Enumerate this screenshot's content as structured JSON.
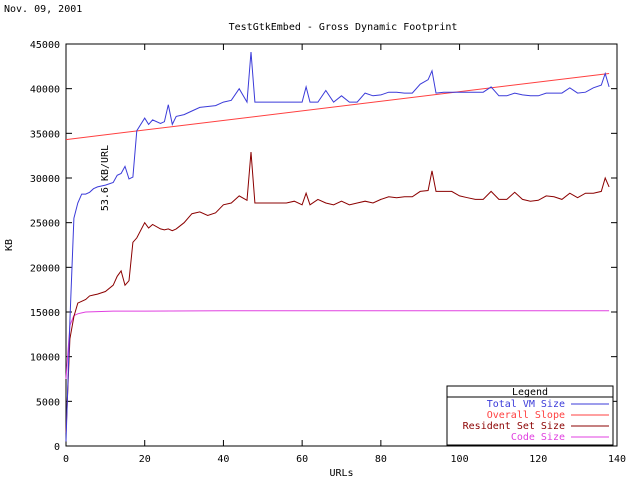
{
  "header": {
    "date": "Nov. 09, 2001"
  },
  "chart_data": {
    "type": "line",
    "title": "TestGtkEmbed - Gross Dynamic Footprint",
    "xlabel": "URLs",
    "ylabel": "KB",
    "xlim": [
      0,
      140
    ],
    "ylim": [
      0,
      45000
    ],
    "xticks": [
      0,
      20,
      40,
      60,
      80,
      100,
      120,
      140
    ],
    "yticks": [
      0,
      5000,
      10000,
      15000,
      20000,
      25000,
      30000,
      35000,
      40000,
      45000
    ],
    "xtick_labels": [
      "0",
      "20",
      "40",
      "60",
      "80",
      "100",
      "120",
      "140"
    ],
    "ytick_labels": [
      "0",
      "5000",
      "10000",
      "15000",
      "20000",
      "25000",
      "30000",
      "35000",
      "40000",
      "45000"
    ],
    "grid": false,
    "legend_title": "Legend",
    "legend_position": "bottom-right",
    "annotation": "53.6 KB/URL",
    "series": [
      {
        "name": "Total VM Size",
        "color": "#3b3bd9",
        "x": [
          0,
          1,
          2,
          3,
          4,
          5,
          6,
          7,
          8,
          10,
          12,
          13,
          14,
          15,
          16,
          17,
          18,
          20,
          21,
          22,
          24,
          25,
          26,
          27,
          28,
          30,
          32,
          34,
          36,
          38,
          40,
          42,
          44,
          46,
          47,
          48,
          50,
          52,
          54,
          56,
          58,
          60,
          61,
          62,
          64,
          66,
          68,
          70,
          72,
          74,
          76,
          78,
          80,
          82,
          84,
          86,
          88,
          90,
          92,
          93,
          94,
          96,
          98,
          100,
          102,
          104,
          106,
          108,
          110,
          112,
          114,
          116,
          118,
          120,
          122,
          124,
          126,
          128,
          130,
          132,
          134,
          136,
          137,
          138
        ],
        "y": [
          500,
          14000,
          25500,
          27200,
          28200,
          28200,
          28400,
          28800,
          29000,
          29200,
          29500,
          30300,
          30500,
          31300,
          29900,
          30100,
          35300,
          36700,
          36000,
          36500,
          36100,
          36300,
          38200,
          36000,
          36900,
          37100,
          37500,
          37900,
          38000,
          38100,
          38500,
          38700,
          40000,
          38500,
          44100,
          38500,
          38500,
          38500,
          38500,
          38500,
          38500,
          38500,
          40200,
          38500,
          38500,
          39800,
          38500,
          39200,
          38500,
          38500,
          39500,
          39200,
          39300,
          39600,
          39600,
          39500,
          39500,
          40500,
          41000,
          42000,
          39500,
          39600,
          39600,
          39600,
          39600,
          39600,
          39600,
          40200,
          39200,
          39200,
          39500,
          39300,
          39200,
          39200,
          39500,
          39500,
          39500,
          40100,
          39500,
          39600,
          40100,
          40400,
          41700,
          40200
        ]
      },
      {
        "name": "Overall Slope",
        "color": "#ff4040",
        "x": [
          0,
          138
        ],
        "y": [
          34300,
          41700
        ]
      },
      {
        "name": "Resident Set Size",
        "color": "#8b0000",
        "x": [
          0,
          1,
          2,
          3,
          4,
          5,
          6,
          7,
          8,
          10,
          12,
          13,
          14,
          15,
          16,
          17,
          18,
          20,
          21,
          22,
          24,
          25,
          26,
          27,
          28,
          30,
          32,
          34,
          36,
          38,
          40,
          42,
          44,
          46,
          47,
          48,
          50,
          52,
          54,
          56,
          58,
          60,
          61,
          62,
          64,
          66,
          68,
          70,
          72,
          74,
          76,
          78,
          80,
          82,
          84,
          86,
          88,
          90,
          92,
          93,
          94,
          96,
          98,
          100,
          102,
          104,
          106,
          108,
          110,
          112,
          114,
          116,
          118,
          120,
          122,
          124,
          126,
          128,
          130,
          132,
          134,
          136,
          137,
          138
        ],
        "y": [
          1500,
          12000,
          14500,
          16000,
          16200,
          16400,
          16800,
          16900,
          17000,
          17300,
          18000,
          19000,
          19600,
          18000,
          18500,
          22800,
          23300,
          25000,
          24400,
          24800,
          24300,
          24200,
          24300,
          24100,
          24300,
          25000,
          26000,
          26200,
          25800,
          26100,
          27000,
          27200,
          28000,
          27500,
          32900,
          27200,
          27200,
          27200,
          27200,
          27200,
          27400,
          27000,
          28300,
          27000,
          27600,
          27200,
          27000,
          27400,
          27000,
          27200,
          27400,
          27200,
          27600,
          27900,
          27800,
          27900,
          27900,
          28500,
          28600,
          30800,
          28500,
          28500,
          28500,
          28000,
          27800,
          27600,
          27600,
          28500,
          27600,
          27600,
          28400,
          27600,
          27400,
          27500,
          28000,
          27900,
          27600,
          28300,
          27800,
          28300,
          28300,
          28500,
          30000,
          29000
        ]
      },
      {
        "name": "Code Size",
        "color": "#e040e0",
        "x": [
          0,
          1,
          2,
          3,
          4,
          5,
          8,
          12,
          20,
          40,
          60,
          80,
          100,
          120,
          138
        ],
        "y": [
          7500,
          13500,
          14600,
          14800,
          14900,
          15000,
          15050,
          15100,
          15100,
          15150,
          15150,
          15150,
          15150,
          15150,
          15150
        ]
      }
    ]
  }
}
